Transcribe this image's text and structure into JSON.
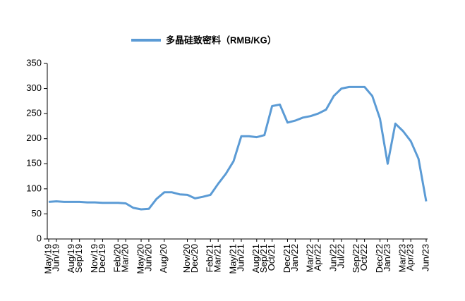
{
  "chart_data": {
    "type": "line",
    "categories": [
      "May/19",
      "Jun/19",
      null,
      "Aug/19",
      "Sep/19",
      null,
      "Nov/19",
      "Dec/19",
      null,
      "Feb/20",
      "Mar/20",
      null,
      "May/20",
      "Jun/20",
      null,
      "Aug/20",
      null,
      null,
      "Nov/20",
      "Dec/20",
      null,
      "Feb/21",
      "Mar/21",
      null,
      "May/21",
      "Jun/21",
      null,
      "Aug/21",
      "Sep/21",
      "Oct/21",
      null,
      "Dec/21",
      "Jan/22",
      null,
      "Mar/22",
      "Apr/22",
      null,
      "Jun/22",
      "Jul/22",
      null,
      "Sep/22",
      "Oct/22",
      null,
      "Dec/22",
      "Jan/23",
      null,
      "Mar/23",
      "Apr/23",
      null,
      "Jun/23"
    ],
    "series": [
      {
        "name": "多晶硅致密料（RMB/KG）",
        "color": "#5b9bd5",
        "values": [
          74,
          75,
          74,
          74,
          74,
          73,
          73,
          72,
          72,
          72,
          71,
          62,
          59,
          60,
          80,
          93,
          93,
          89,
          88,
          81,
          84,
          88,
          110,
          130,
          155,
          205,
          205,
          203,
          207,
          265,
          268,
          232,
          236,
          242,
          245,
          250,
          258,
          285,
          300,
          303,
          303,
          303,
          285,
          240,
          150,
          230,
          215,
          195,
          160,
          75
        ]
      }
    ],
    "ylim": [
      0,
      350
    ],
    "yticks": [
      0,
      50,
      100,
      150,
      200,
      250,
      300,
      350
    ],
    "legend": "top"
  }
}
